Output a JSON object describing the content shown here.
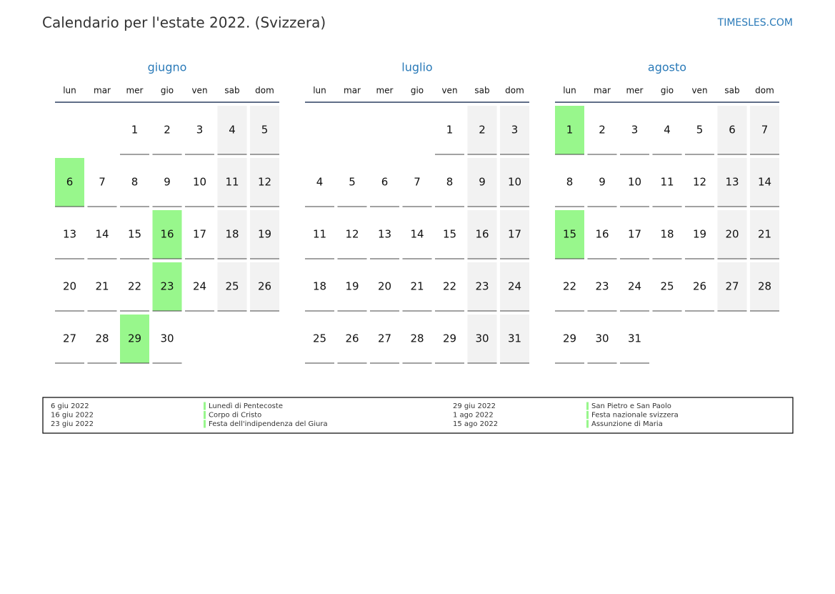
{
  "header": {
    "title": "Calendario per l'estate 2022. (Svizzera)",
    "site": "TIMESLES.COM"
  },
  "weekdays": [
    "lun",
    "mar",
    "mer",
    "gio",
    "ven",
    "sab",
    "dom"
  ],
  "holiday_color": "#98f78c",
  "months": [
    {
      "name": "giugno",
      "holidays": [
        6,
        16,
        23,
        29
      ],
      "weeks": [
        [
          null,
          null,
          1,
          2,
          3,
          4,
          5
        ],
        [
          6,
          7,
          8,
          9,
          10,
          11,
          12
        ],
        [
          13,
          14,
          15,
          16,
          17,
          18,
          19
        ],
        [
          20,
          21,
          22,
          23,
          24,
          25,
          26
        ],
        [
          27,
          28,
          29,
          30
        ]
      ]
    },
    {
      "name": "luglio",
      "holidays": [],
      "weeks": [
        [
          null,
          null,
          null,
          null,
          1,
          2,
          3
        ],
        [
          4,
          5,
          6,
          7,
          8,
          9,
          10
        ],
        [
          11,
          12,
          13,
          14,
          15,
          16,
          17
        ],
        [
          18,
          19,
          20,
          21,
          22,
          23,
          24
        ],
        [
          25,
          26,
          27,
          28,
          29,
          30,
          31
        ]
      ]
    },
    {
      "name": "agosto",
      "holidays": [
        1,
        15
      ],
      "weeks": [
        [
          1,
          2,
          3,
          4,
          5,
          6,
          7
        ],
        [
          8,
          9,
          10,
          11,
          12,
          13,
          14
        ],
        [
          15,
          16,
          17,
          18,
          19,
          20,
          21
        ],
        [
          22,
          23,
          24,
          25,
          26,
          27,
          28
        ],
        [
          29,
          30,
          31
        ]
      ]
    }
  ],
  "legend": [
    {
      "date": "6 giu 2022",
      "name": "Lunedì di Pentecoste"
    },
    {
      "date": "16 giu 2022",
      "name": "Corpo di Cristo"
    },
    {
      "date": "23 giu 2022",
      "name": "Festa dell'indipendenza del Giura"
    },
    {
      "date": "29 giu 2022",
      "name": "San Pietro e San Paolo"
    },
    {
      "date": "1 ago 2022",
      "name": "Festa nazionale svizzera"
    },
    {
      "date": "15 ago 2022",
      "name": "Assunzione di Maria"
    }
  ]
}
